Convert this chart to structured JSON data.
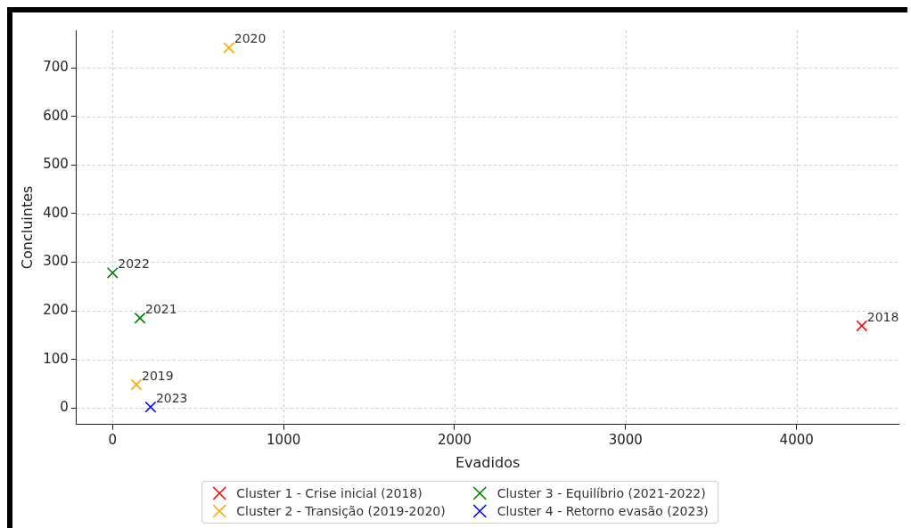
{
  "chart_data": {
    "type": "scatter",
    "xlabel": "Evadidos",
    "ylabel": "Concluintes",
    "xlim": [
      -211,
      4598
    ],
    "ylim": [
      -34,
      777
    ],
    "xticks": [
      0,
      1000,
      2000,
      3000,
      4000
    ],
    "yticks": [
      0,
      100,
      200,
      300,
      400,
      500,
      600,
      700
    ],
    "grid": true,
    "legend": "bottom",
    "marker": "cross",
    "series": [
      {
        "name": "Cluster 1 - Crise inicial (2018)",
        "color": "#ff0000",
        "x": [
          4381
        ],
        "values": [
          169
        ]
      },
      {
        "name": "Cluster 2 - Transição (2019-2020)",
        "color": "#ffa500",
        "x": [
          139,
          680
        ],
        "values": [
          48,
          741
        ]
      },
      {
        "name": "Cluster 3 - Equilíbrio (2021-2022)",
        "color": "#008000",
        "x": [
          160,
          0
        ],
        "values": [
          185,
          278
        ]
      },
      {
        "name": "Cluster 4 - Retorno evasão (2023)",
        "color": "#0000ff",
        "x": [
          222
        ],
        "values": [
          2
        ]
      }
    ],
    "annotations": [
      {
        "text": "2018",
        "x": 4381,
        "y": 169
      },
      {
        "text": "2019",
        "x": 139,
        "y": 48
      },
      {
        "text": "2020",
        "x": 680,
        "y": 741
      },
      {
        "text": "2021",
        "x": 160,
        "y": 185
      },
      {
        "text": "2022",
        "x": 0,
        "y": 278
      },
      {
        "text": "2023",
        "x": 222,
        "y": 2
      }
    ]
  }
}
